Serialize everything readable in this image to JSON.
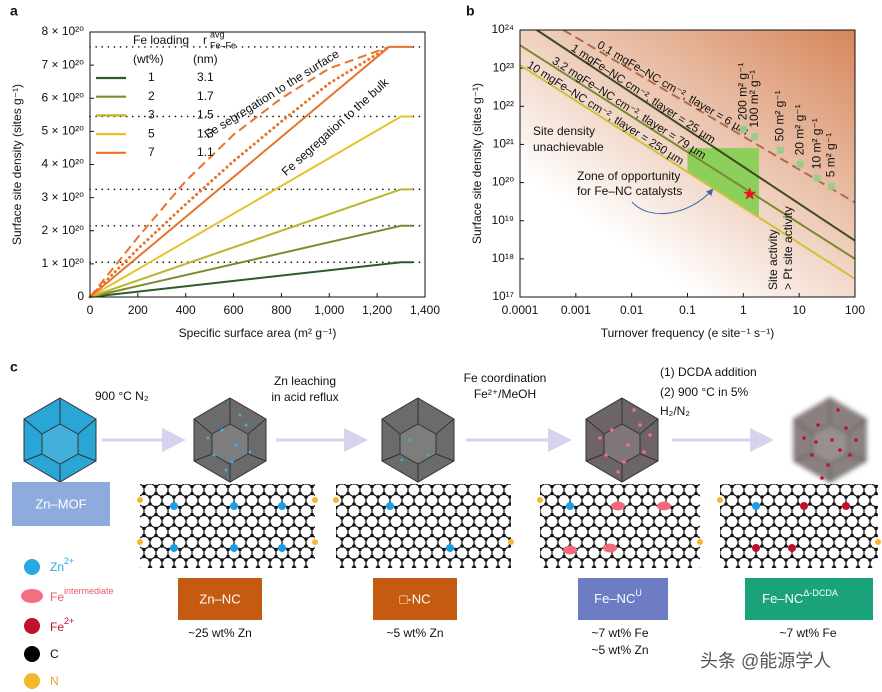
{
  "chart_data": [
    {
      "panel": "a",
      "type": "line",
      "xlabel": "Specific surface area (m² g⁻¹)",
      "ylabel": "Surface site density (sites g⁻¹)",
      "xlim": [
        0,
        1400
      ],
      "xticks": [
        0,
        200,
        400,
        600,
        800,
        {
          "value": 1000,
          "label": "1,000"
        },
        {
          "value": 1200,
          "label": "1,200"
        },
        {
          "value": 1400,
          "label": "1,400"
        }
      ],
      "ylim": [
        0,
        8e+20
      ],
      "yticks": [
        0,
        {
          "value": 1e+20,
          "label": "1 × 10²⁰"
        },
        {
          "value": 2e+20,
          "label": "2 × 10²⁰"
        },
        {
          "value": 3e+20,
          "label": "3 × 10²⁰"
        },
        {
          "value": 4e+20,
          "label": "4 × 10²⁰"
        },
        {
          "value": 5e+20,
          "label": "5 × 10²⁰"
        },
        {
          "value": 6e+20,
          "label": "6 × 10²⁰"
        },
        {
          "value": 7e+20,
          "label": "7 × 10²⁰"
        },
        {
          "value": 8e+20,
          "label": "8 × 10²⁰"
        }
      ],
      "legend": {
        "title": "Fe loading",
        "r_symbol": {
          "base": "r",
          "sup": "avg",
          "sub": "Fe–Fe"
        },
        "col1_unit": "(wt%)",
        "col2_unit": "(nm)"
      },
      "series": [
        {
          "name": "1",
          "r_value": 3.1,
          "color": "#2e5a2c",
          "style": "solid",
          "x": [
            0,
            1300,
            1350
          ],
          "values": [
            0,
            1.05e+20,
            1.05e+20
          ]
        },
        {
          "name": "2",
          "r_value": 1.7,
          "color": "#7d8a2c",
          "style": "solid",
          "x": [
            0,
            1300,
            1350
          ],
          "values": [
            0,
            2.15e+20,
            2.15e+20
          ]
        },
        {
          "name": "3",
          "r_value": 1.5,
          "color": "#b9b62c",
          "style": "solid",
          "x": [
            0,
            1300,
            1350
          ],
          "values": [
            0,
            3.25e+20,
            3.25e+20
          ]
        },
        {
          "name": "5",
          "r_value": 1.3,
          "color": "#e6c22c",
          "style": "solid",
          "x": [
            0,
            1300,
            1350
          ],
          "values": [
            0,
            5.45e+20,
            5.45e+20
          ]
        },
        {
          "name": "7",
          "r_value": 1.1,
          "color": "#e8732a",
          "style": "solid",
          "x": [
            0,
            1250,
            1350
          ],
          "values": [
            0,
            7.55e+20,
            7.55e+20
          ]
        },
        {
          "name": "Fe segregation to the surface",
          "color": "#e8732a",
          "style": "dashed",
          "x": [
            0,
            200,
            400,
            600,
            800,
            1000,
            1250
          ],
          "values": [
            0,
            1.8e+20,
            3.5e+20,
            4.9e+20,
            6e+20,
            6.9e+20,
            7.55e+20
          ]
        },
        {
          "name": "Fe segregation to the bulk",
          "color": "#e8732a",
          "style": "dotted",
          "x": [
            0,
            200,
            400,
            600,
            800,
            1000,
            1250
          ],
          "values": [
            0,
            1.45e+20,
            2.8e+20,
            4.1e+20,
            5.3e+20,
            6.45e+20,
            7.55e+20
          ]
        }
      ]
    },
    {
      "panel": "b",
      "type": "line",
      "xscale": "log",
      "yscale": "log",
      "xlabel": "Turnover frequency (e site⁻¹ s⁻¹)",
      "ylabel": "Surface site density (sites g⁻¹)",
      "background": [
        "#ffffff",
        "#d6865a"
      ],
      "xlim": [
        0.0001,
        100
      ],
      "xticks": [
        0.0001,
        0.001,
        0.01,
        0.1,
        1,
        10,
        100
      ],
      "ylim": [
        1e+17,
        1e+24
      ],
      "yticks": [
        {
          "value": 1e+17,
          "label": "10¹⁷"
        },
        {
          "value": 1e+18,
          "label": "10¹⁸"
        },
        {
          "value": 1e+19,
          "label": "10¹⁹"
        },
        {
          "value": 1e+20,
          "label": "10²⁰"
        },
        {
          "value": 1e+21,
          "label": "10²¹"
        },
        {
          "value": 1e+22,
          "label": "10²²"
        },
        {
          "value": 1e+23,
          "label": "10²³"
        },
        {
          "value": 1e+24,
          "label": "10²⁴"
        }
      ],
      "regions": [
        {
          "color": "#8ccf5a",
          "x": [
            0.1,
            1.9,
            1.9,
            0.1
          ],
          "values": [
            8e+20,
            8e+20,
            1.2e+19,
            1.9e+20
          ]
        }
      ],
      "series": [
        {
          "name": "0.1 mgFe–NC cm⁻², tlayer = 6 µm",
          "color": "#b06a4e",
          "style": "dashed",
          "x": [
            0.0006,
            100
          ],
          "values": [
            1e+24,
            3e+19
          ]
        },
        {
          "name": "1 mgFe–NC cm⁻², tlayer = 25 µm",
          "color": "#3d4a22",
          "style": "solid",
          "x": [
            0.0002,
            100
          ],
          "values": [
            1e+24,
            3e+18
          ]
        },
        {
          "name": "3.2 mgFe–NC cm⁻², tlayer = 79 µm",
          "color": "#7a8a2e",
          "style": "solid",
          "x": [
            0.0001,
            100
          ],
          "values": [
            4e+23,
            1e+18
          ]
        },
        {
          "name": "10 mgFe–NC cm⁻², tlayer = 250 µm",
          "color": "#cfc23a",
          "style": "solid",
          "x": [
            0.0001,
            100
          ],
          "values": [
            1.2e+23,
            3e+17
          ]
        }
      ],
      "points": {
        "color": "#9ccc8a",
        "x": [
          1,
          1.6,
          4.6,
          10.4,
          21,
          38
        ],
        "values": [
          2.5e+21,
          1.6e+21,
          7e+20,
          3e+20,
          1.3e+20,
          8e+19
        ],
        "labels": [
          "200 m² g⁻¹",
          "100 m² g⁻¹",
          "50 m² g⁻¹",
          "20 m² g⁻¹",
          "10 m² g⁻¹",
          "5 m² g⁻¹"
        ]
      },
      "markers": [
        {
          "shape": "star",
          "color": "#e8141e",
          "x": 1.3,
          "value": 5e+19
        }
      ],
      "annotations": [
        "Site density",
        "unachievable",
        "Zone of opportunity",
        "for Fe–NC catalysts",
        "Site activity",
        "> Pt site activity"
      ]
    }
  ],
  "diagram": {
    "panel": "c",
    "steps": [
      [
        "900 °C N₂"
      ],
      [
        "Zn leaching",
        "in acid reflux"
      ],
      [
        "Fe coordination",
        "Fe²⁺/MeOH"
      ],
      [
        "(1) DCDA addition",
        "(2) 900 °C in 5%",
        "H₂/N₂"
      ]
    ],
    "materials": [
      {
        "name": "Zn–MOF"
      },
      {
        "name": "Zn–NC",
        "composition": [
          "~25 wt% Zn"
        ]
      },
      {
        "name": "□-NC",
        "composition": [
          "~5 wt% Zn"
        ]
      },
      {
        "name": "Fe–NC",
        "sup": "U",
        "composition": [
          "~7 wt% Fe",
          "~5 wt% Zn"
        ]
      },
      {
        "name": "Fe–NC",
        "sup": "Δ-DCDA",
        "composition": [
          "~7 wt% Fe"
        ]
      }
    ],
    "legend": [
      {
        "name": "Zn",
        "sup": "2+"
      },
      {
        "name": "Fe",
        "sup": "intermediate"
      },
      {
        "name": "Fe",
        "sup": "2+"
      },
      {
        "name": "C"
      },
      {
        "name": "N"
      }
    ],
    "watermark": "头条 @能源学人"
  }
}
